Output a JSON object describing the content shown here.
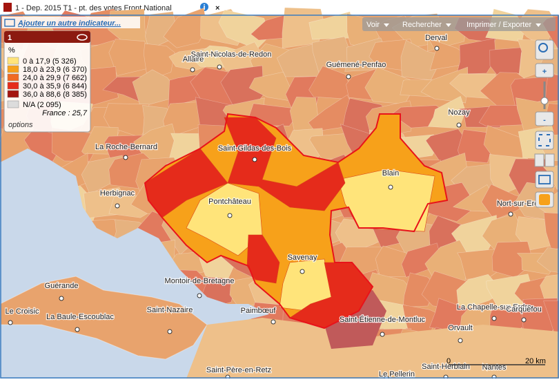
{
  "header": {
    "title": "1 - Dep. 2015 T1  - pt. des votes Front National"
  },
  "add_indicator": "Ajouter un autre indicateur...",
  "toolbar": {
    "buttons": [
      "Voir",
      "Rechercher",
      "Imprimer / Exporter"
    ]
  },
  "legend": {
    "title": "1",
    "unit": "%",
    "items": [
      {
        "label": "0 à 17,9 (5 326)",
        "color": "#ffe47a"
      },
      {
        "label": "18,0 à 23,9 (6 370)",
        "color": "#f7a11a"
      },
      {
        "label": "24,0 à 29,9 (7 662)",
        "color": "#f06a23"
      },
      {
        "label": "30,0 à 35,9 (6 844)",
        "color": "#e52b1b"
      },
      {
        "label": "36,0 à 88,6 (8 385)",
        "color": "#a3150f"
      }
    ],
    "na": {
      "label": "N/A (2 095)",
      "color": "#dcdcdc"
    },
    "reference": "France : 25,7",
    "options": "options"
  },
  "controls": {
    "zoom_in": "+",
    "zoom_out": "-"
  },
  "places": [
    "Derval",
    "Allaire",
    "Saint-Nicolas-de-Redon",
    "Guémené-Penfao",
    "Nozay",
    "La Roche-Bernard",
    "Saint-Gildas-des-Bois",
    "Blain",
    "Herbignac",
    "Pontchâteau",
    "Nort-sur-Erdre",
    "Savenay",
    "Guérande",
    "Montoir-de-Bretagne",
    "Saint-Nazaire",
    "Le Croisic",
    "La Baule-Escoublac",
    "Paimbœuf",
    "Saint-Étienne-de-Montluc",
    "La Chapelle-sur-Erdre",
    "Carquefou",
    "Orvault",
    "Saint-Herblain",
    "Nantes",
    "Saint-Père-en-Retz",
    "Le Pellerin"
  ],
  "scale": {
    "start": "0",
    "end": "20 km"
  }
}
